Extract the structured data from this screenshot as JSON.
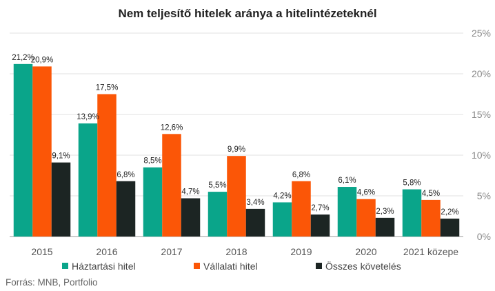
{
  "chart_data": {
    "type": "bar",
    "title": "Nem teljesítő hitelek aránya a hitelintézeteknél",
    "categories": [
      "2015",
      "2016",
      "2017",
      "2018",
      "2019",
      "2020",
      "2021 közepe"
    ],
    "series": [
      {
        "name": "Háztartási hitel",
        "color": "#0aa58a",
        "values": [
          21.2,
          13.9,
          8.5,
          5.5,
          4.2,
          6.1,
          5.8
        ],
        "labels": [
          "21,2%",
          "13,9%",
          "8,5%",
          "5,5%",
          "4,2%",
          "6,1%",
          "5,8%"
        ]
      },
      {
        "name": "Vállalati hitel",
        "color": "#fb5607",
        "values": [
          20.9,
          17.5,
          12.6,
          9.9,
          6.8,
          4.6,
          4.5
        ],
        "labels": [
          "20,9%",
          "17,5%",
          "12,6%",
          "9,9%",
          "6,8%",
          "4,6%",
          "4,5%"
        ]
      },
      {
        "name": "Összes követelés",
        "color": "#1c2523",
        "values": [
          9.1,
          6.8,
          4.7,
          3.4,
          2.7,
          2.3,
          2.2
        ],
        "labels": [
          "9,1%",
          "6,8%",
          "4,7%",
          "3,4%",
          "2,7%",
          "2,3%",
          "2,2%"
        ]
      }
    ],
    "ylim": [
      0,
      25
    ],
    "yticks": [
      0,
      5,
      10,
      15,
      20,
      25
    ],
    "ytick_labels": [
      "0%",
      "5%",
      "10%",
      "15%",
      "20%",
      "25%"
    ],
    "y_axis_side": "right",
    "grid": true,
    "legend_position": "bottom",
    "source": "Forrás: MNB, Portfolio"
  }
}
